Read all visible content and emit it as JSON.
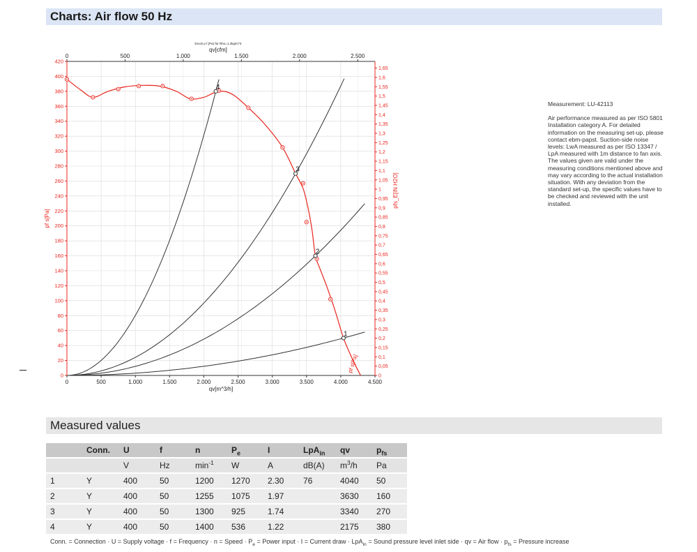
{
  "header": {
    "title": "Charts: Air flow 50 Hz"
  },
  "measured": {
    "title": "Measured values"
  },
  "description": {
    "measurement": "Measurement: LU-42113",
    "text": "Air performance measured as per ISO 5801 Installation category A. For detailed information on the measuring set-up, please contact ebm-papst. Suction-side noise levels: LwA measured as per ISO 13347 / LpA measured with 1m distance to fan axis. The values given are valid under the measuring conditions mentioned above and may vary according to the actual installation situation. With any deviation from the standard set-up, the specific values have to be checked and reviewed with the unit installed."
  },
  "colors": {
    "red": "#e8241c",
    "black": "#333333",
    "header_bg": "#dbe5f5",
    "table_header_bg": "#c8c8c8"
  },
  "chart_data": {
    "type": "line",
    "density_note": "Druck p f.(Pa) für Rho=1.2kg/m^3",
    "xlabel": "qv[m^3/h]",
    "x2label": "qv[cfm]",
    "ylabel": "pf s[Pa]",
    "y2label": "pfs_E[IN H2O]",
    "curve_label": "pf s[Pa]",
    "xlim": [
      0,
      4500
    ],
    "ylim": [
      0,
      420
    ],
    "x2lim": [
      0,
      2648.6
    ],
    "y2lim": [
      0,
      1.686
    ],
    "x_ticks": [
      {
        "v": 0,
        "label": "0"
      },
      {
        "v": 500,
        "label": "500"
      },
      {
        "v": 1000,
        "label": "1.000"
      },
      {
        "v": 1500,
        "label": "1.500"
      },
      {
        "v": 2000,
        "label": "2.000"
      },
      {
        "v": 2500,
        "label": "2.500"
      },
      {
        "v": 3000,
        "label": "3.000"
      },
      {
        "v": 3500,
        "label": "3.500"
      },
      {
        "v": 4000,
        "label": "4.000"
      },
      {
        "v": 4500,
        "label": "4.500"
      }
    ],
    "x2_ticks": [
      {
        "v": 0,
        "label": "0"
      },
      {
        "v": 500,
        "label": "500"
      },
      {
        "v": 1000,
        "label": "1.000"
      },
      {
        "v": 1500,
        "label": "1.500"
      },
      {
        "v": 2000,
        "label": "2.000"
      },
      {
        "v": 2500,
        "label": "2.500"
      }
    ],
    "y_ticks": [
      0,
      20,
      40,
      60,
      80,
      100,
      120,
      140,
      160,
      180,
      200,
      220,
      240,
      260,
      280,
      300,
      320,
      340,
      360,
      380,
      400,
      420
    ],
    "y2_ticks": [
      {
        "v": 0,
        "label": "0"
      },
      {
        "v": 0.05,
        "label": "0,05"
      },
      {
        "v": 0.1,
        "label": "0,1"
      },
      {
        "v": 0.15,
        "label": "0,15"
      },
      {
        "v": 0.2,
        "label": "0,2"
      },
      {
        "v": 0.25,
        "label": "0,25"
      },
      {
        "v": 0.3,
        "label": "0,3"
      },
      {
        "v": 0.35,
        "label": "0,35"
      },
      {
        "v": 0.4,
        "label": "0,4"
      },
      {
        "v": 0.45,
        "label": "0,45"
      },
      {
        "v": 0.5,
        "label": "0,5"
      },
      {
        "v": 0.55,
        "label": "0,55"
      },
      {
        "v": 0.6,
        "label": "0,6"
      },
      {
        "v": 0.65,
        "label": "0,65"
      },
      {
        "v": 0.7,
        "label": "0,7"
      },
      {
        "v": 0.75,
        "label": "0,75"
      },
      {
        "v": 0.8,
        "label": "0,8"
      },
      {
        "v": 0.85,
        "label": "0,85"
      },
      {
        "v": 0.9,
        "label": "0,9"
      },
      {
        "v": 0.95,
        "label": "0,95"
      },
      {
        "v": 1.0,
        "label": "1"
      },
      {
        "v": 1.05,
        "label": "1,05"
      },
      {
        "v": 1.1,
        "label": "1,1"
      },
      {
        "v": 1.15,
        "label": "1,15"
      },
      {
        "v": 1.2,
        "label": "1,2"
      },
      {
        "v": 1.25,
        "label": "1,25"
      },
      {
        "v": 1.3,
        "label": "1,3"
      },
      {
        "v": 1.35,
        "label": "1,35"
      },
      {
        "v": 1.4,
        "label": "1,4"
      },
      {
        "v": 1.45,
        "label": "1,45"
      },
      {
        "v": 1.5,
        "label": "1,5"
      },
      {
        "v": 1.55,
        "label": "1,55"
      },
      {
        "v": 1.6,
        "label": "1,6"
      },
      {
        "v": 1.65,
        "label": "1,65"
      }
    ],
    "grid": true,
    "fan_curve": {
      "x": [
        0,
        200,
        380,
        600,
        850,
        1100,
        1350,
        1600,
        1800,
        2000,
        2150,
        2300,
        2450,
        2650,
        2900,
        3150,
        3340,
        3450,
        3520,
        3580,
        3630,
        3700,
        3800,
        3920,
        4040,
        4180,
        4290
      ],
      "y": [
        396,
        382,
        372,
        380,
        386,
        388,
        387,
        380,
        370,
        372,
        378,
        380,
        374,
        358,
        335,
        305,
        270,
        250,
        225,
        195,
        160,
        142,
        118,
        86,
        50,
        20,
        0
      ],
      "markers_x": [
        0,
        380,
        750,
        1050,
        1400,
        1820,
        2220,
        2650,
        3150,
        3450,
        3500,
        3650,
        3850
      ],
      "markers_y": [
        396,
        372,
        383,
        387,
        387,
        370,
        381,
        358,
        305,
        257,
        205,
        156,
        102
      ]
    },
    "system_curves": [
      {
        "label": "1",
        "q": 4040,
        "p": 50,
        "x_max": 4350
      },
      {
        "label": "2",
        "q": 3630,
        "p": 160,
        "x_max": 4350
      },
      {
        "label": "3",
        "q": 3340,
        "p": 270,
        "x_max": 4050
      },
      {
        "label": "4",
        "q": 2175,
        "p": 380,
        "x_max": 2220
      }
    ],
    "operating_points": [
      {
        "label": "1",
        "x": 4040,
        "y": 50
      },
      {
        "label": "2",
        "x": 3630,
        "y": 160
      },
      {
        "label": "3",
        "x": 3340,
        "y": 270
      },
      {
        "label": "4",
        "x": 2175,
        "y": 380
      }
    ]
  },
  "table": {
    "headers": [
      "",
      "Conn.",
      "U",
      "f",
      "n",
      "P_e",
      "I",
      "LpA_in",
      "qv",
      "p_fs"
    ],
    "units": [
      "",
      "",
      "V",
      "Hz",
      "min-1",
      "W",
      "A",
      "dB(A)",
      "m3/h",
      "Pa"
    ],
    "rows": [
      [
        "1",
        "Y",
        "400",
        "50",
        "1200",
        "1270",
        "2.30",
        "76",
        "4040",
        "50"
      ],
      [
        "2",
        "Y",
        "400",
        "50",
        "1255",
        "1075",
        "1.97",
        "",
        "3630",
        "160"
      ],
      [
        "3",
        "Y",
        "400",
        "50",
        "1300",
        "925",
        "1.74",
        "",
        "3340",
        "270"
      ],
      [
        "4",
        "Y",
        "400",
        "50",
        "1400",
        "536",
        "1.22",
        "",
        "2175",
        "380"
      ]
    ]
  },
  "legend": {
    "conn": "Conn. = Connection",
    "u": "U = Supply voltage",
    "f": "f = Frequency",
    "n": "n = Speed",
    "pe_pre": "P",
    "pe_sub": "e",
    "pe_post": " = Power input",
    "i": "I = Current draw",
    "lpa_pre": "LpA",
    "lpa_sub": "in",
    "lpa_post": " = Sound pressure level inlet side",
    "qv": "qv = Air flow",
    "pfs_pre": "p",
    "pfs_sub": "fs",
    "pfs_post": " = Pressure increase",
    "sep": " · "
  }
}
